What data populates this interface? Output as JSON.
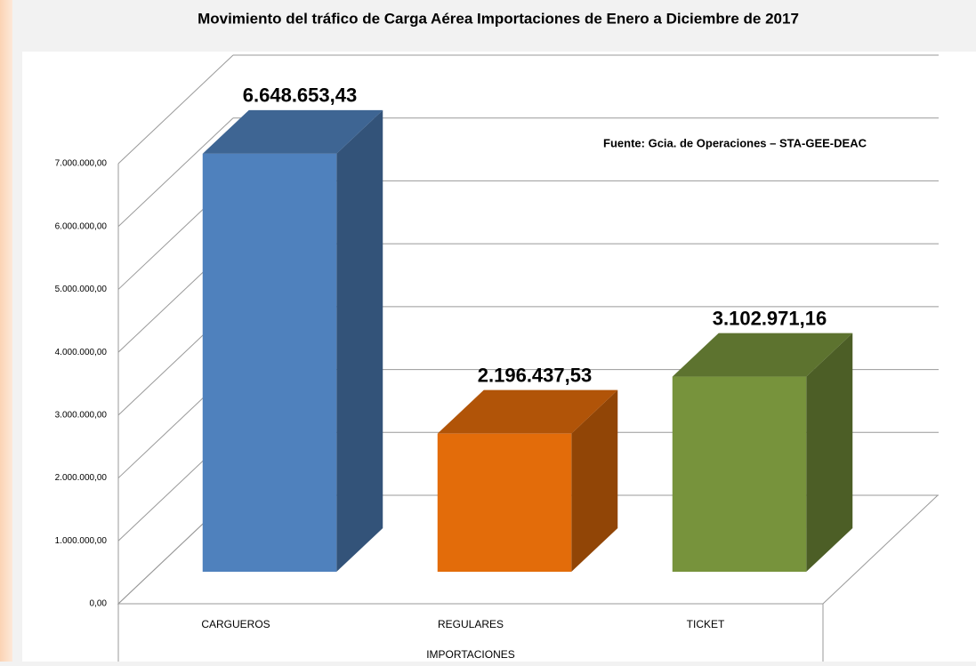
{
  "chart_data": {
    "type": "bar3d",
    "title": "Movimiento del tráfico de Carga Aérea Importaciones  de Enero a Diciembre de 2017",
    "annotation": "Fuente: Gcia. de Operaciones – STA-GEE-DEAC",
    "x_label": "IMPORTACIONES",
    "categories": [
      "CARGUEROS",
      "REGULARES",
      "TICKET"
    ],
    "values": [
      6648653.43,
      2196437.53,
      3102971.16
    ],
    "value_labels": [
      "6.648.653,43",
      "2.196.437,53",
      "3.102.971,16"
    ],
    "colors": [
      "#4f81bd",
      "#e36c0a",
      "#77933c"
    ],
    "ylim": [
      0,
      7000000
    ],
    "yticks": [
      {
        "value": 0,
        "label": "0,00"
      },
      {
        "value": 1000000,
        "label": "1.000.000,00"
      },
      {
        "value": 2000000,
        "label": "2.000.000,00"
      },
      {
        "value": 3000000,
        "label": "3.000.000,00"
      },
      {
        "value": 4000000,
        "label": "4.000.000,00"
      },
      {
        "value": 5000000,
        "label": "5.000.000,00"
      },
      {
        "value": 6000000,
        "label": "6.000.000,00"
      },
      {
        "value": 7000000,
        "label": "7.000.000,00"
      }
    ],
    "grid": true
  }
}
